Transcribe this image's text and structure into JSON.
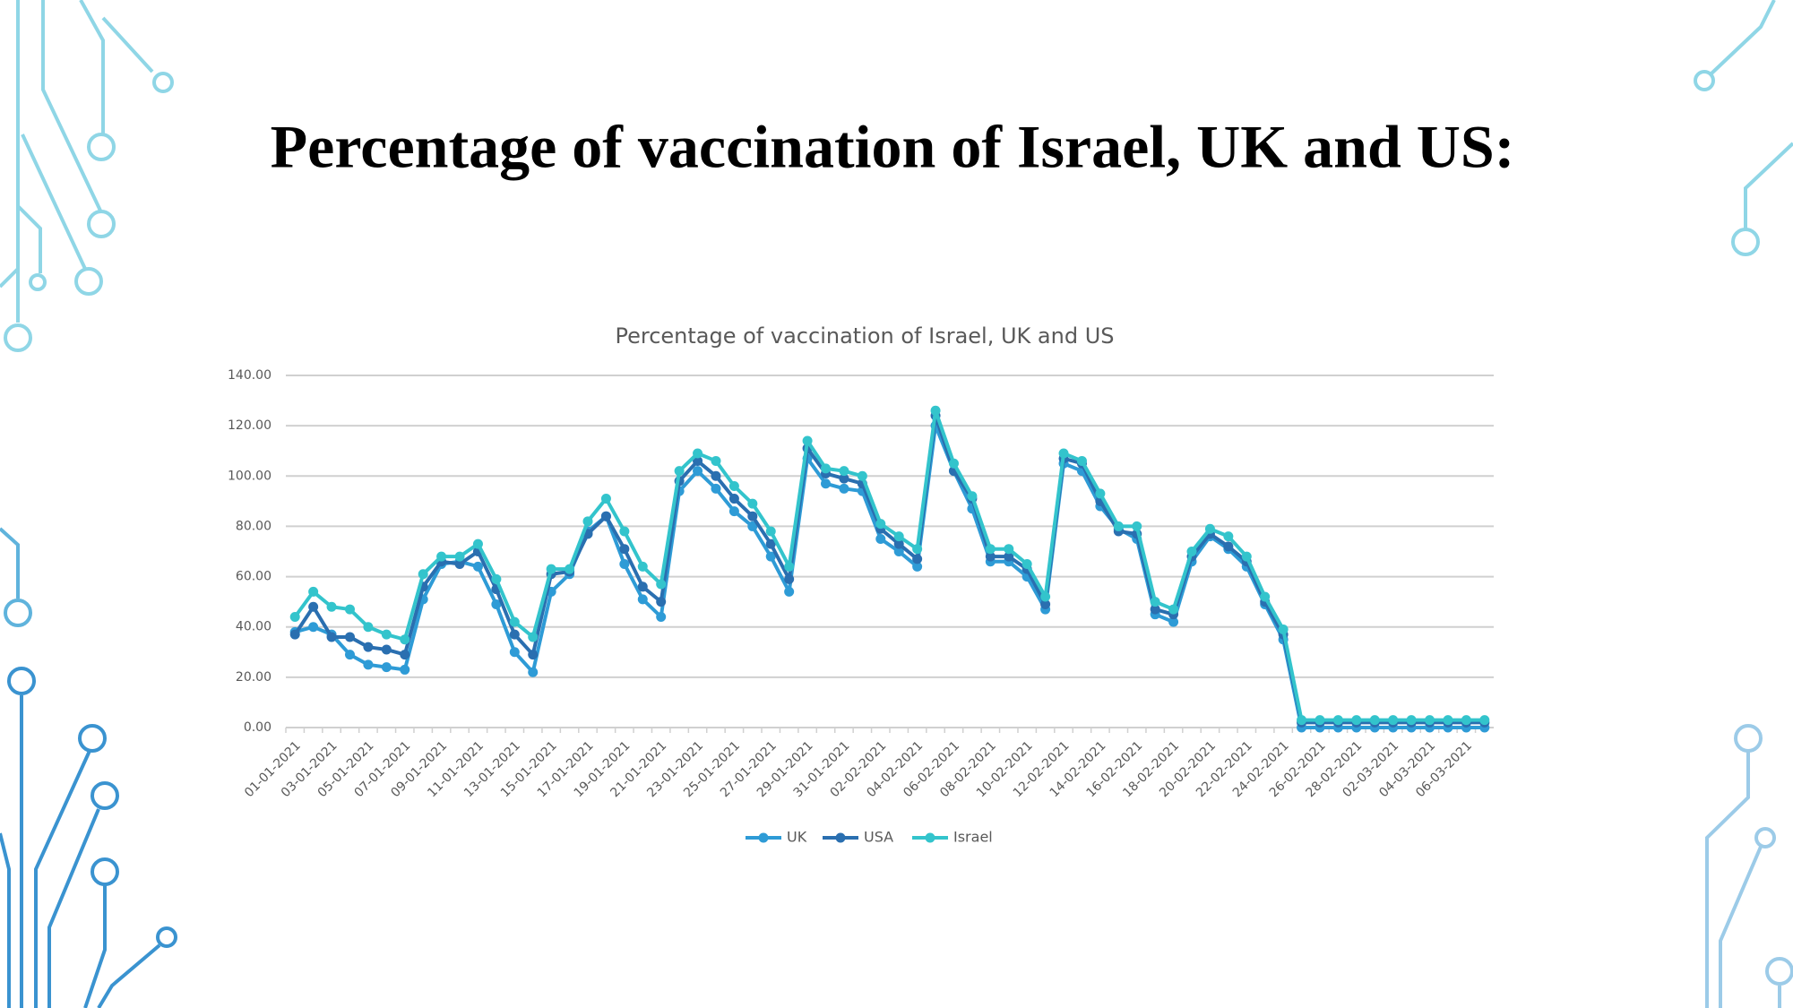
{
  "slide_title": "Percentage of vaccination of Israel, UK and US:",
  "chart_data": {
    "type": "line",
    "title": "Percentage of vaccination of Israel, UK and US",
    "categories": [
      "01-01-2021",
      null,
      "03-01-2021",
      null,
      "05-01-2021",
      null,
      "07-01-2021",
      null,
      "09-01-2021",
      null,
      "11-01-2021",
      null,
      "13-01-2021",
      null,
      "15-01-2021",
      null,
      "17-01-2021",
      null,
      "19-01-2021",
      null,
      "21-01-2021",
      null,
      "23-01-2021",
      null,
      "25-01-2021",
      null,
      "27-01-2021",
      null,
      "29-01-2021",
      null,
      "31-01-2021",
      null,
      "02-02-2021",
      null,
      "04-02-2021",
      null,
      "06-02-2021",
      null,
      "08-02-2021",
      null,
      "10-02-2021",
      null,
      "12-02-2021",
      null,
      "14-02-2021",
      null,
      "16-02-2021",
      null,
      "18-02-2021",
      null,
      "20-02-2021",
      null,
      "22-02-2021",
      null,
      "24-02-2021",
      null,
      "26-02-2021",
      null,
      "28-02-2021",
      null,
      "02-03-2021",
      null,
      "04-03-2021",
      null,
      "06-03-2021",
      null
    ],
    "series": [
      {
        "name": "UK",
        "color": "#2e9bd6",
        "values": [
          38,
          40,
          37,
          29,
          25,
          24,
          23,
          51,
          65,
          66,
          64,
          49,
          30,
          22,
          54,
          61,
          78,
          84,
          65,
          51,
          44,
          94,
          102,
          95,
          86,
          80,
          68,
          54,
          107,
          97,
          95,
          94,
          75,
          70,
          64,
          120,
          102,
          87,
          66,
          66,
          60,
          47,
          105,
          102,
          88,
          79,
          75,
          45,
          42,
          66,
          76,
          71,
          64,
          49,
          35,
          0,
          0,
          0,
          0,
          0,
          0,
          0,
          0,
          0,
          0,
          0
        ]
      },
      {
        "name": "USA",
        "color": "#2a6fb0",
        "values": [
          37,
          48,
          36,
          36,
          32,
          31,
          29,
          56,
          66,
          65,
          70,
          55,
          37,
          29,
          61,
          62,
          77,
          84,
          71,
          56,
          50,
          98,
          106,
          100,
          91,
          84,
          73,
          59,
          111,
          101,
          99,
          97,
          79,
          73,
          67,
          124,
          102,
          91,
          68,
          68,
          63,
          49,
          107,
          105,
          90,
          78,
          77,
          47,
          45,
          68,
          77,
          72,
          66,
          50,
          37,
          2,
          2,
          2,
          2,
          2,
          2,
          2,
          2,
          2,
          2,
          2
        ]
      },
      {
        "name": "Israel",
        "color": "#33c4cc",
        "values": [
          44,
          54,
          48,
          47,
          40,
          37,
          35,
          61,
          68,
          68,
          73,
          59,
          42,
          36,
          63,
          63,
          82,
          91,
          78,
          64,
          57,
          102,
          109,
          106,
          96,
          89,
          78,
          64,
          114,
          103,
          102,
          100,
          81,
          76,
          71,
          126,
          105,
          92,
          71,
          71,
          65,
          52,
          109,
          106,
          93,
          80,
          80,
          50,
          47,
          70,
          79,
          76,
          68,
          52,
          39,
          3,
          3,
          3,
          3,
          3,
          3,
          3,
          3,
          3,
          3,
          3
        ]
      }
    ],
    "ylim": [
      0,
      140
    ],
    "yticks": [
      {
        "value": 0,
        "label": "0.00"
      },
      {
        "value": 20,
        "label": "20.00"
      },
      {
        "value": 40,
        "label": "40.00"
      },
      {
        "value": 60,
        "label": "60.00"
      },
      {
        "value": 80,
        "label": "80.00"
      },
      {
        "value": 100,
        "label": "100.00"
      },
      {
        "value": 120,
        "label": "120.00"
      },
      {
        "value": 140,
        "label": "140.00"
      }
    ],
    "grid": true,
    "legend": "bottom"
  }
}
